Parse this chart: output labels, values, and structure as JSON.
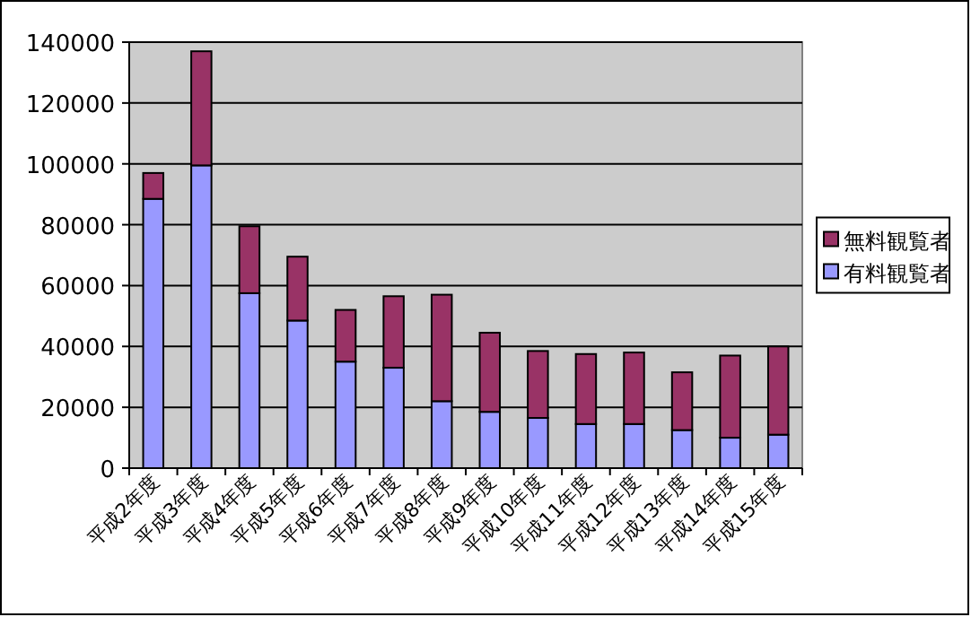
{
  "chart_data": {
    "type": "bar",
    "stacked": true,
    "categories": [
      "平成2年度",
      "平成3年度",
      "平成4年度",
      "平成5年度",
      "平成6年度",
      "平成7年度",
      "平成8年度",
      "平成9年度",
      "平成10年度",
      "平成11年度",
      "平成12年度",
      "平成13年度",
      "平成14年度",
      "平成15年度"
    ],
    "series": [
      {
        "name": "有料観覧者",
        "color": "#9999ff",
        "values": [
          88500,
          99500,
          57500,
          48500,
          35000,
          33000,
          22000,
          18500,
          16500,
          14500,
          14500,
          12500,
          10000,
          11000
        ]
      },
      {
        "name": "無料観覧者",
        "color": "#993366",
        "values": [
          8500,
          37500,
          22000,
          21000,
          17000,
          23500,
          35000,
          26000,
          22000,
          23000,
          23500,
          19000,
          27000,
          29000
        ]
      }
    ],
    "ylim": [
      0,
      140000
    ],
    "yticks": [
      0,
      20000,
      40000,
      60000,
      80000,
      100000,
      120000,
      140000
    ],
    "grid": "y",
    "legend": "right"
  }
}
